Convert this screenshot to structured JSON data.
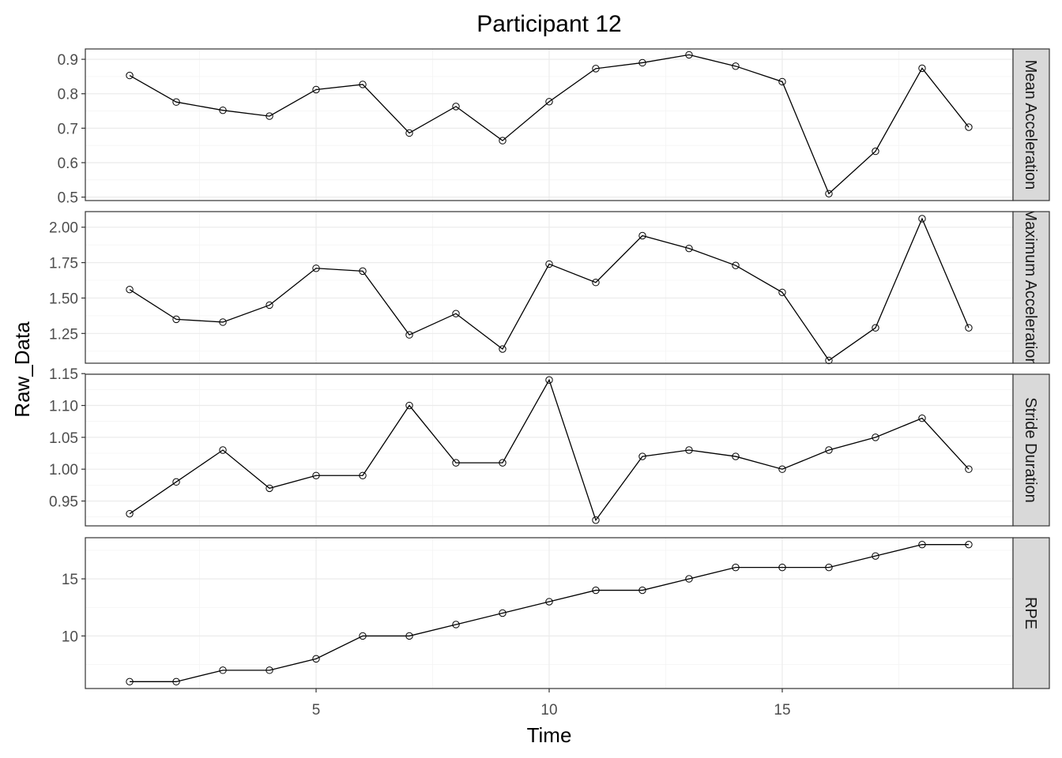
{
  "chart_data": {
    "type": "line",
    "title": "Participant 12",
    "xlabel": "Time",
    "ylabel": "Raw_Data",
    "grid": true,
    "x": [
      1,
      2,
      3,
      4,
      5,
      6,
      7,
      8,
      9,
      10,
      11,
      12,
      13,
      14,
      15,
      16,
      17,
      18,
      19
    ],
    "xlim": [
      0.05,
      19.95
    ],
    "xticks": [
      5,
      10,
      15
    ],
    "xtick_labels": [
      "5",
      "10",
      "15"
    ],
    "facets": [
      {
        "strip": "Mean Acceleration",
        "ylim": [
          0.49,
          0.93
        ],
        "yticks": [
          0.5,
          0.6,
          0.7,
          0.8,
          0.9
        ],
        "ytick_labels": [
          "0.5",
          "0.6",
          "0.7",
          "0.8",
          "0.9"
        ],
        "values": [
          0.853,
          0.776,
          0.752,
          0.735,
          0.812,
          0.827,
          0.686,
          0.763,
          0.664,
          0.777,
          0.873,
          0.89,
          0.913,
          0.88,
          0.835,
          0.51,
          0.633,
          0.874,
          0.703
        ]
      },
      {
        "strip": "Maximum Acceleration",
        "ylim": [
          1.04,
          2.11
        ],
        "yticks": [
          1.25,
          1.5,
          1.75,
          2.0
        ],
        "ytick_labels": [
          "1.25",
          "1.50",
          "1.75",
          "2.00"
        ],
        "values": [
          1.56,
          1.35,
          1.33,
          1.45,
          1.71,
          1.69,
          1.24,
          1.39,
          1.14,
          1.74,
          1.61,
          1.94,
          1.85,
          1.73,
          1.54,
          1.06,
          1.29,
          2.06,
          1.29
        ]
      },
      {
        "strip": "Stride Duration",
        "ylim": [
          0.911,
          1.149
        ],
        "yticks": [
          0.95,
          1.0,
          1.05,
          1.1,
          1.15
        ],
        "ytick_labels": [
          "0.95",
          "1.00",
          "1.05",
          "1.10",
          "1.15"
        ],
        "values": [
          0.93,
          0.98,
          1.03,
          0.97,
          0.99,
          0.99,
          1.1,
          1.01,
          1.01,
          1.14,
          0.92,
          1.02,
          1.03,
          1.02,
          1.0,
          1.03,
          1.05,
          1.08,
          1.0
        ]
      },
      {
        "strip": "RPE",
        "ylim": [
          5.4,
          18.6
        ],
        "yticks": [
          10,
          15
        ],
        "ytick_labels": [
          "10",
          "15"
        ],
        "values": [
          6,
          6,
          7,
          7,
          8,
          10,
          10,
          11,
          12,
          13,
          14,
          14,
          15,
          16,
          16,
          16,
          17,
          18,
          18
        ]
      }
    ]
  }
}
